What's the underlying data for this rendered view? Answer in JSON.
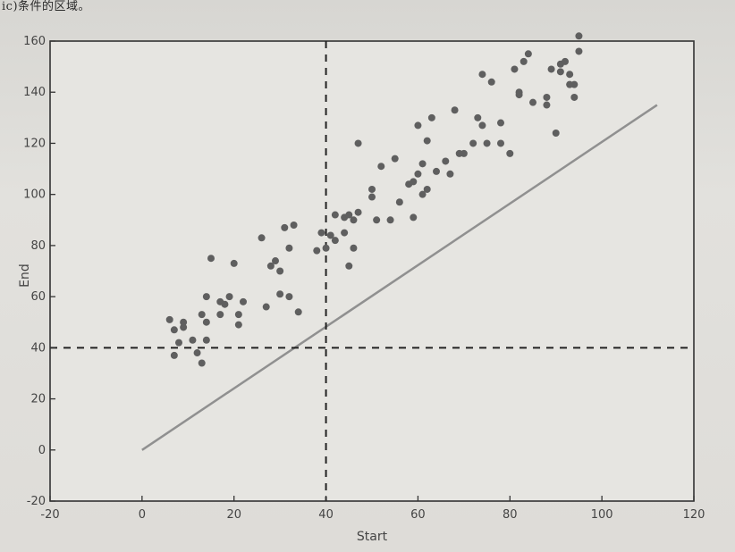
{
  "header_snippet": "ic)条件的区域。",
  "chart_data": {
    "type": "scatter",
    "xlabel": "Start",
    "ylabel": "End",
    "xlim": [
      -20,
      120
    ],
    "ylim": [
      -20,
      160
    ],
    "xticks": [
      -20,
      0,
      20,
      40,
      60,
      80,
      100,
      120
    ],
    "yticks": [
      -20,
      0,
      20,
      40,
      60,
      80,
      100,
      120,
      140,
      160
    ],
    "threshold_lines": {
      "x": 40,
      "y": 40,
      "style": "dashed"
    },
    "shaded_region": {
      "x": [
        -20,
        40
      ],
      "y": [
        40,
        160
      ]
    },
    "reference_line": {
      "x": [
        0,
        112
      ],
      "y": [
        0,
        135
      ]
    },
    "colors": {
      "points": "#5f5f5f",
      "line": "#909090",
      "shade": "#a9a8a5"
    },
    "points": [
      [
        6,
        51
      ],
      [
        7,
        47
      ],
      [
        7,
        37
      ],
      [
        8,
        42
      ],
      [
        9,
        50
      ],
      [
        9,
        48
      ],
      [
        11,
        43
      ],
      [
        12,
        38
      ],
      [
        13,
        34
      ],
      [
        13,
        53
      ],
      [
        14,
        60
      ],
      [
        14,
        43
      ],
      [
        14,
        50
      ],
      [
        15,
        75
      ],
      [
        17,
        53
      ],
      [
        17,
        58
      ],
      [
        18,
        57
      ],
      [
        19,
        60
      ],
      [
        20,
        73
      ],
      [
        21,
        49
      ],
      [
        21,
        53
      ],
      [
        22,
        58
      ],
      [
        26,
        83
      ],
      [
        27,
        56
      ],
      [
        28,
        72
      ],
      [
        29,
        74
      ],
      [
        30,
        70
      ],
      [
        30,
        61
      ],
      [
        31,
        87
      ],
      [
        32,
        79
      ],
      [
        32,
        60
      ],
      [
        33,
        88
      ],
      [
        34,
        54
      ],
      [
        38,
        78
      ],
      [
        39,
        85
      ],
      [
        40,
        79
      ],
      [
        41,
        84
      ],
      [
        42,
        92
      ],
      [
        42,
        82
      ],
      [
        44,
        91
      ],
      [
        44,
        85
      ],
      [
        45,
        92
      ],
      [
        45,
        72
      ],
      [
        46,
        79
      ],
      [
        46,
        90
      ],
      [
        47,
        93
      ],
      [
        47,
        120
      ],
      [
        50,
        102
      ],
      [
        50,
        99
      ],
      [
        51,
        90
      ],
      [
        52,
        111
      ],
      [
        54,
        90
      ],
      [
        55,
        114
      ],
      [
        56,
        97
      ],
      [
        58,
        104
      ],
      [
        59,
        105
      ],
      [
        59,
        91
      ],
      [
        60,
        108
      ],
      [
        60,
        127
      ],
      [
        61,
        112
      ],
      [
        61,
        100
      ],
      [
        62,
        102
      ],
      [
        62,
        121
      ],
      [
        63,
        130
      ],
      [
        64,
        109
      ],
      [
        66,
        113
      ],
      [
        67,
        108
      ],
      [
        68,
        133
      ],
      [
        69,
        116
      ],
      [
        70,
        116
      ],
      [
        72,
        120
      ],
      [
        73,
        130
      ],
      [
        74,
        147
      ],
      [
        74,
        127
      ],
      [
        75,
        120
      ],
      [
        76,
        144
      ],
      [
        78,
        128
      ],
      [
        78,
        120
      ],
      [
        80,
        116
      ],
      [
        81,
        149
      ],
      [
        82,
        140
      ],
      [
        82,
        139
      ],
      [
        83,
        152
      ],
      [
        84,
        155
      ],
      [
        85,
        136
      ],
      [
        88,
        138
      ],
      [
        88,
        135
      ],
      [
        89,
        149
      ],
      [
        90,
        124
      ],
      [
        91,
        151
      ],
      [
        91,
        148
      ],
      [
        92,
        152
      ],
      [
        93,
        147
      ],
      [
        93,
        143
      ],
      [
        94,
        143
      ],
      [
        94,
        138
      ],
      [
        95,
        162
      ],
      [
        95,
        156
      ]
    ]
  }
}
